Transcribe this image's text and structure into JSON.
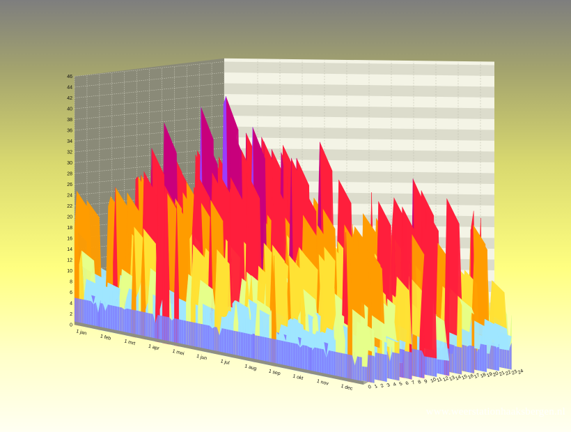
{
  "watermark": "www.weerstationhaaksbergen.nl",
  "chart_data": {
    "type": "surface-3d",
    "title": "",
    "z_ticks": [
      "0",
      "2",
      "4",
      "6",
      "8",
      "10",
      "12",
      "14",
      "16",
      "18",
      "20",
      "22",
      "24",
      "26",
      "28",
      "30",
      "32",
      "34",
      "36",
      "38",
      "40",
      "42",
      "44",
      "46"
    ],
    "z_range": [
      0,
      46
    ],
    "month_ticks": [
      "1 jan",
      "1 feb",
      "1 mrt",
      "1 apr",
      "1 mei",
      "1 jun",
      "1 jul",
      "1 aug",
      "1 sep",
      "1 okt",
      "1 nov",
      "1 dec"
    ],
    "hour_ticks": [
      "0",
      "1",
      "2",
      "3",
      "4",
      "5",
      "6",
      "7",
      "8",
      "9",
      "10",
      "11",
      "12",
      "13",
      "14",
      "15",
      "16",
      "17",
      "18",
      "19",
      "20",
      "21",
      "22",
      "23",
      "24"
    ],
    "grid": true,
    "colors": {
      "back_wall_light": "#f4f4e6",
      "back_wall_dark": "#c8c8b6",
      "left_wall": "#8a8a78",
      "floor": "#a9a99a",
      "band_low": "#7f7fff",
      "band_mid_low": "#9fe6ff",
      "band_mid": "#e6ff8a",
      "band_yellow": "#ffe135",
      "band_orange": "#ff9c00",
      "band_red": "#ff1f3c",
      "band_magenta": "#c8007c",
      "band_purple": "#9b3cff"
    },
    "z_color_breaks": [
      6,
      10,
      14,
      20,
      26,
      34,
      40
    ],
    "peaks_by_month": [
      {
        "month": "1 jan",
        "approx_max": 34
      },
      {
        "month": "1 feb",
        "approx_max": 37
      },
      {
        "month": "1 mrt",
        "approx_max": 45
      },
      {
        "month": "1 apr",
        "approx_max": 40
      },
      {
        "month": "1 mei",
        "approx_max": 38
      },
      {
        "month": "1 jun",
        "approx_max": 44
      },
      {
        "month": "1 jul",
        "approx_max": 38
      },
      {
        "month": "1 aug",
        "approx_max": 30
      },
      {
        "month": "1 sep",
        "approx_max": 28
      },
      {
        "month": "1 okt",
        "approx_max": 25
      },
      {
        "month": "1 nov",
        "approx_max": 36
      },
      {
        "month": "1 dec",
        "approx_max": 34
      }
    ]
  }
}
